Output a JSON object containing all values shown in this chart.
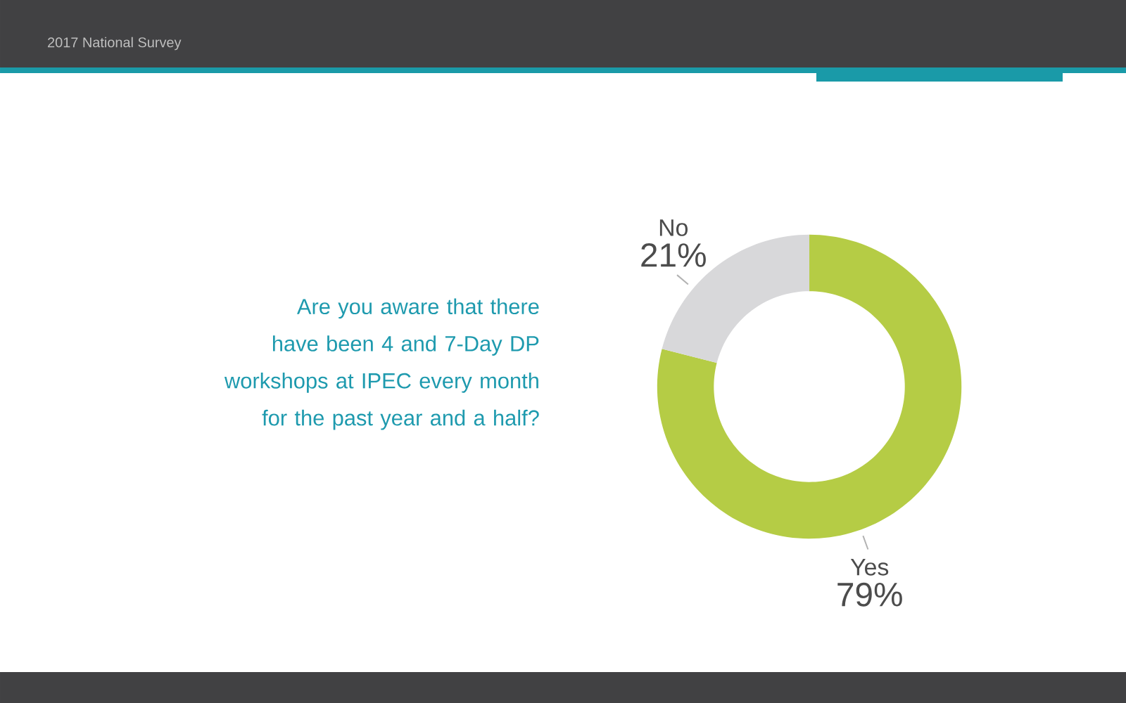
{
  "chart_data": {
    "type": "donut",
    "title": "2017 National Survey",
    "subtitle": "Are you aware that there have been 4 and 7-Day DP workshops at IPEC every month for the past year and a half?",
    "categories": [
      "Yes",
      "No"
    ],
    "values": [
      79,
      21
    ],
    "colors": [
      "#b5cc45",
      "#d8d8da"
    ],
    "value_labels": [
      "79%",
      "21%"
    ]
  }
}
